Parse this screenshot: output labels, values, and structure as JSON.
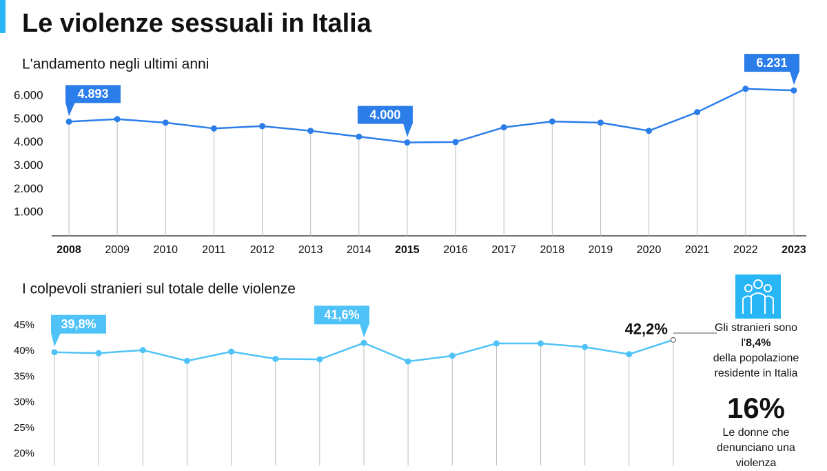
{
  "title": "Le violenze sessuali in Italia",
  "chart_data": [
    {
      "type": "line",
      "title": "L'andamento negli ultimi anni",
      "categories": [
        "2008",
        "2009",
        "2010",
        "2011",
        "2012",
        "2013",
        "2014",
        "2015",
        "2016",
        "2017",
        "2018",
        "2019",
        "2020",
        "2021",
        "2022",
        "2023"
      ],
      "series": [
        {
          "name": null,
          "color": "#2b7de9",
          "values": [
            4893,
            5000,
            4850,
            4600,
            4700,
            4500,
            4250,
            4000,
            4020,
            4650,
            4900,
            4850,
            4500,
            5300,
            6300,
            6231
          ],
          "value_labels": [
            "4.893",
            null,
            null,
            null,
            null,
            null,
            null,
            "4.000",
            null,
            null,
            null,
            null,
            null,
            null,
            null,
            "6.231"
          ]
        }
      ],
      "ylim": [
        0,
        6500
      ],
      "yticks": [
        {
          "value": 1000,
          "label": "1.000"
        },
        {
          "value": 2000,
          "label": "2.000"
        },
        {
          "value": 3000,
          "label": "3.000"
        },
        {
          "value": 4000,
          "label": "4.000"
        },
        {
          "value": 5000,
          "label": "5.000"
        },
        {
          "value": 6000,
          "label": "6.000"
        }
      ]
    },
    {
      "type": "line",
      "title": "I colpevoli stranieri sul totale delle violenze",
      "series": [
        {
          "name": null,
          "color": "#4fc3f7",
          "values": [
            39.8,
            39.6,
            40.2,
            38.1,
            39.9,
            38.5,
            38.4,
            41.6,
            38.0,
            39.1,
            41.5,
            41.5,
            40.8,
            39.4,
            42.2
          ],
          "value_labels": [
            "39,8%",
            null,
            null,
            null,
            null,
            null,
            null,
            "41,6%",
            null,
            null,
            null,
            null,
            null,
            null,
            "42,2%"
          ]
        }
      ],
      "ylim": [
        20,
        45
      ],
      "yticks": [
        {
          "value": 20,
          "label": "20%"
        },
        {
          "value": 25,
          "label": "25%"
        },
        {
          "value": 30,
          "label": "30%"
        },
        {
          "value": 35,
          "label": "35%"
        },
        {
          "value": 40,
          "label": "40%"
        },
        {
          "value": 45,
          "label": "45%"
        }
      ]
    }
  ],
  "side": {
    "text_before": "Gli stranieri sono l'",
    "text_bold": "8,4%",
    "text_after": "della popolazione residente in Italia",
    "big": "16%",
    "caption": "Le donne che denunciano una violenza"
  }
}
